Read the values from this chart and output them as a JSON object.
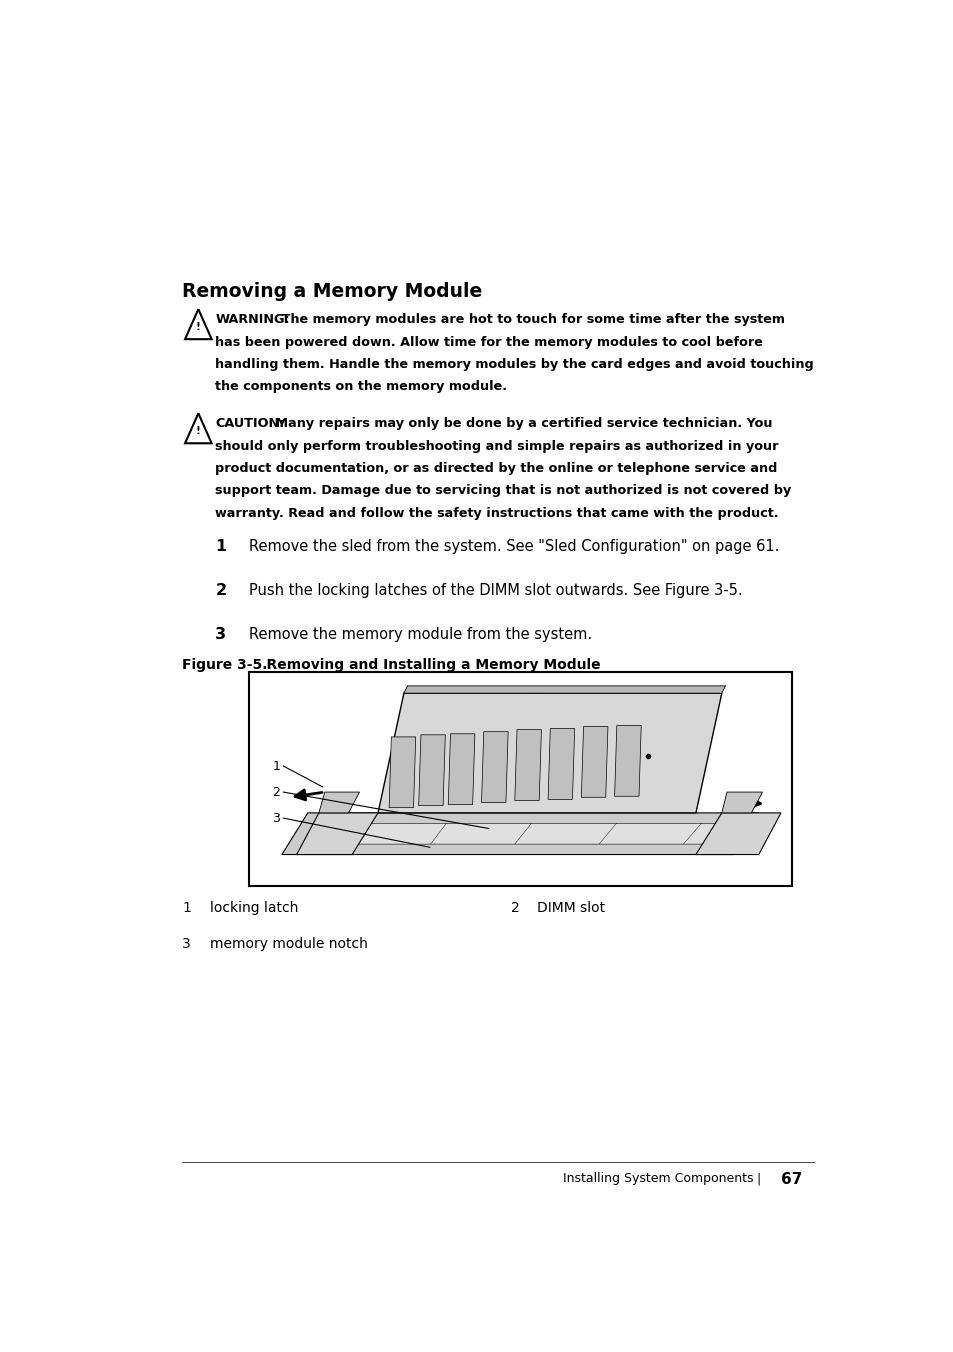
{
  "title": "Removing a Memory Module",
  "warning_label": "WARNING:",
  "warning_body": " The memory modules are hot to touch for some time after the system has been powered down. Allow time for the memory modules to cool before handling them. Handle the memory modules by the card edges and avoid touching the components on the memory module.",
  "warning_lines": [
    "WARNING: The memory modules are hot to touch for some time after the system",
    "has been powered down. Allow time for the memory modules to cool before",
    "handling them. Handle the memory modules by the card edges and avoid touching",
    "the components on the memory module."
  ],
  "caution_label": "CAUTION:",
  "caution_lines": [
    "CAUTION: Many repairs may only be done by a certified service technician. You",
    "should only perform troubleshooting and simple repairs as authorized in your",
    "product documentation, or as directed by the online or telephone service and",
    "support team. Damage due to servicing that is not authorized is not covered by",
    "warranty. Read and follow the safety instructions that came with the product."
  ],
  "steps": [
    "Remove the sled from the system. See \"Sled Configuration\" on page 61.",
    "Push the locking latches of the DIMM slot outwards. See Figure 3-5.",
    "Remove the memory module from the system."
  ],
  "figure_label": "Figure 3-5.",
  "figure_title": "    Removing and Installing a Memory Module",
  "legend_row1_num1": "1",
  "legend_row1_label1": "locking latch",
  "legend_row1_num2": "2",
  "legend_row1_label2": "DIMM slot",
  "legend_row2_num": "3",
  "legend_row2_label": "memory module notch",
  "footer_text": "Installing System Components",
  "footer_sep": "|",
  "page_number": "67",
  "bg_color": "#ffffff"
}
